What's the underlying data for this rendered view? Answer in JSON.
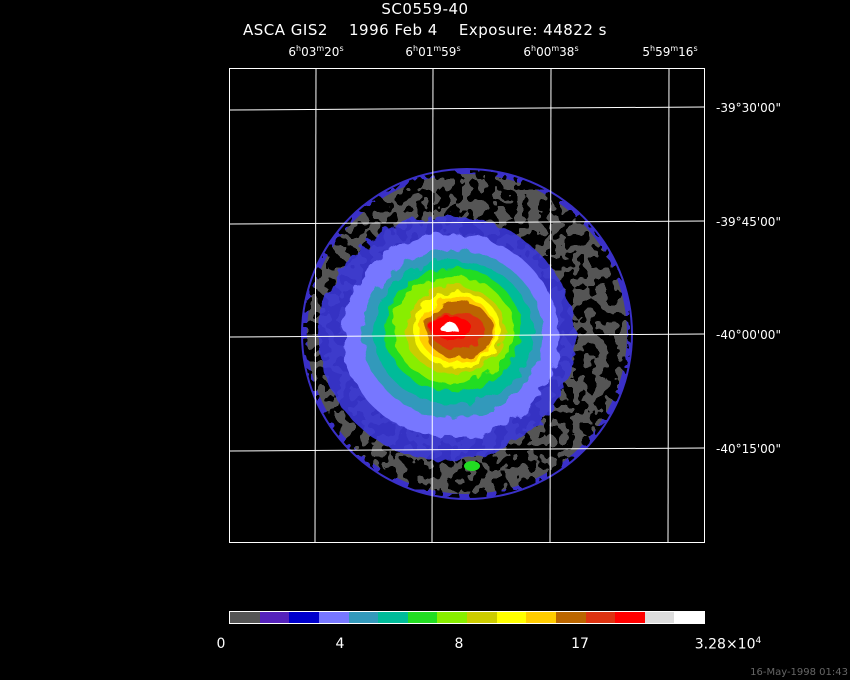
{
  "header": {
    "object": "SC0559-40",
    "instrument": "ASCA GIS2",
    "date": "1996 Feb  4",
    "exposure": "Exposure: 44822 s"
  },
  "ra_ticks": [
    {
      "h": "6",
      "m": "03",
      "s": "20"
    },
    {
      "h": "6",
      "m": "01",
      "s": "59"
    },
    {
      "h": "6",
      "m": "00",
      "s": "38"
    },
    {
      "h": "5",
      "m": "59",
      "s": "16"
    }
  ],
  "dec_ticks": [
    "-39°30'00\"",
    "-39°45'00\"",
    "-40°00'00\"",
    "-40°15'00\""
  ],
  "colorbar": {
    "colors": [
      "#555555",
      "#5522bb",
      "#0000cc",
      "#7777ff",
      "#3399bb",
      "#00bb99",
      "#22dd22",
      "#88ee00",
      "#cccc00",
      "#ffff00",
      "#ffcc00",
      "#bb6600",
      "#dd3311",
      "#ff0000",
      "#dddddd",
      "#ffffff"
    ],
    "labels": [
      "0",
      "4",
      "8",
      "17"
    ],
    "max_mantissa": "3.28×10",
    "max_exponent": "4"
  },
  "footer_date": "16-May-1998 01:43"
}
